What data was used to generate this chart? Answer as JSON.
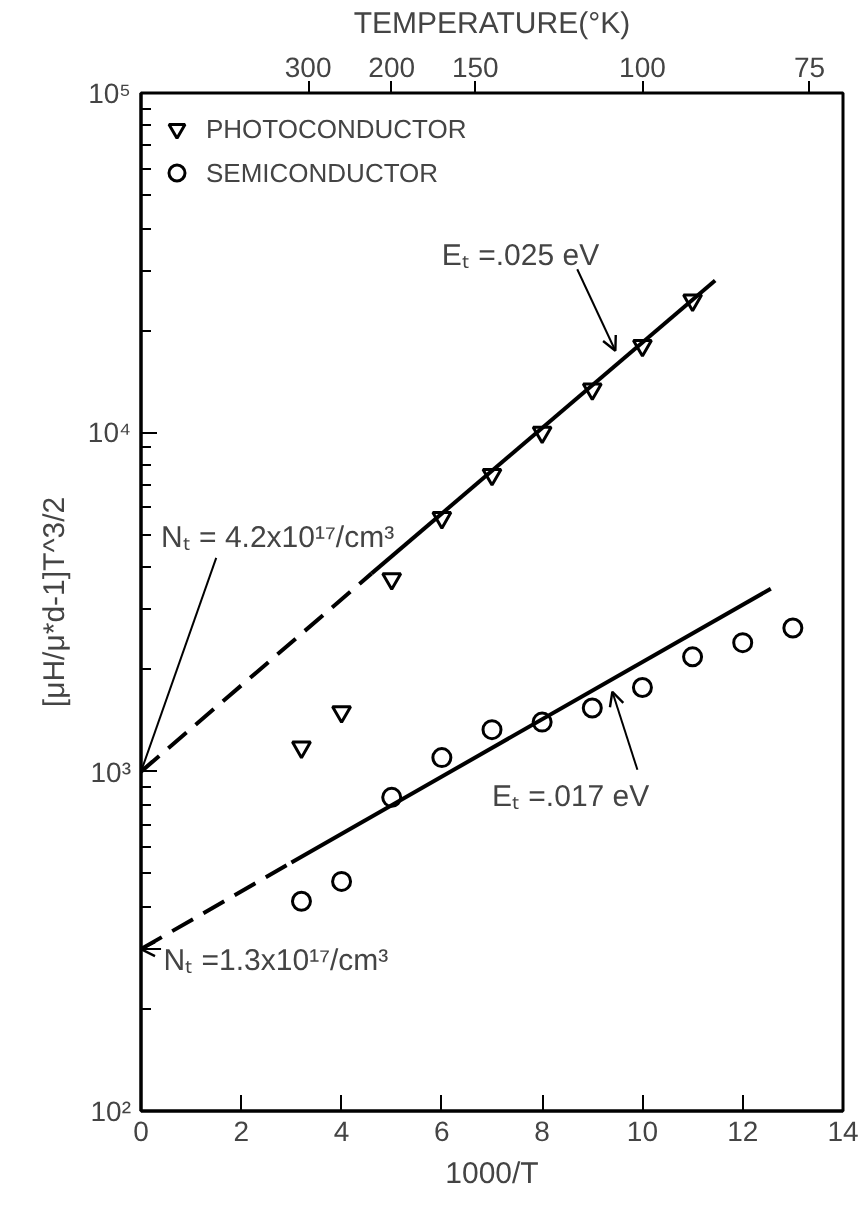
{
  "chart_data": {
    "type": "scatter",
    "xlabel": "1000/T",
    "ylabel": "[μH/μ*d-1]T^3/2",
    "xlim": [
      0,
      14
    ],
    "xticks": [
      0,
      2,
      4,
      6,
      8,
      10,
      12,
      14
    ],
    "log": "y",
    "ylim": [
      100,
      100000
    ],
    "yticks": [
      {
        "value": 100,
        "label": "10²"
      },
      {
        "value": 1000,
        "label": "10³"
      },
      {
        "value": 10000,
        "label": "10⁴"
      },
      {
        "value": 100000,
        "label": "10⁵"
      }
    ],
    "grid": false,
    "legend": "top left",
    "series": [
      {
        "name": "PHOTOCONDUCTOR",
        "marker": "triangle",
        "color": "#000000",
        "x": [
          3.2,
          4,
          5,
          6,
          7,
          8,
          9,
          10,
          11
        ],
        "values": [
          1180,
          1500,
          3700,
          5600,
          7500,
          10000,
          13400,
          18000,
          24500
        ]
      },
      {
        "name": "SEMICONDUCTOR",
        "marker": "circle",
        "color": "#000000",
        "x": [
          3.2,
          4,
          5,
          6,
          7,
          8,
          9,
          10,
          11,
          12,
          13
        ],
        "values": [
          415,
          475,
          840,
          1100,
          1330,
          1400,
          1540,
          1770,
          2180,
          2400,
          2650
        ]
      },
      {
        "type": "line",
        "line_style": "dashed",
        "color": "#000000",
        "x": [
          0,
          4.6
        ],
        "values": [
          1000,
          3840
        ]
      },
      {
        "type": "line",
        "line_style": "solid",
        "color": "#000000",
        "x": [
          4.6,
          11.45
        ],
        "values": [
          3840,
          28000
        ]
      },
      {
        "type": "line",
        "line_style": "dashed",
        "color": "#000000",
        "x": [
          0,
          3
        ],
        "values": [
          300,
          540
        ]
      },
      {
        "type": "line",
        "line_style": "solid",
        "color": "#000000",
        "x": [
          3,
          12.56
        ],
        "values": [
          540,
          3460
        ]
      }
    ],
    "annotations": [
      "TEMPERATURE(°K)",
      "300",
      "200",
      "150",
      "100",
      "75",
      {
        "text": "Eₜ =.025 eV",
        "x": 9.46,
        "y": 17400
      },
      {
        "text": "Eₜ =.017 eV",
        "x": 9.4,
        "y": 1720
      },
      {
        "text": "Nₜ = 4.2x10¹⁷/cm³",
        "x": 0,
        "y": 1000
      },
      {
        "text": "Nₜ =1.3x10¹⁷/cm³",
        "x": 0,
        "y": 300
      }
    ]
  }
}
